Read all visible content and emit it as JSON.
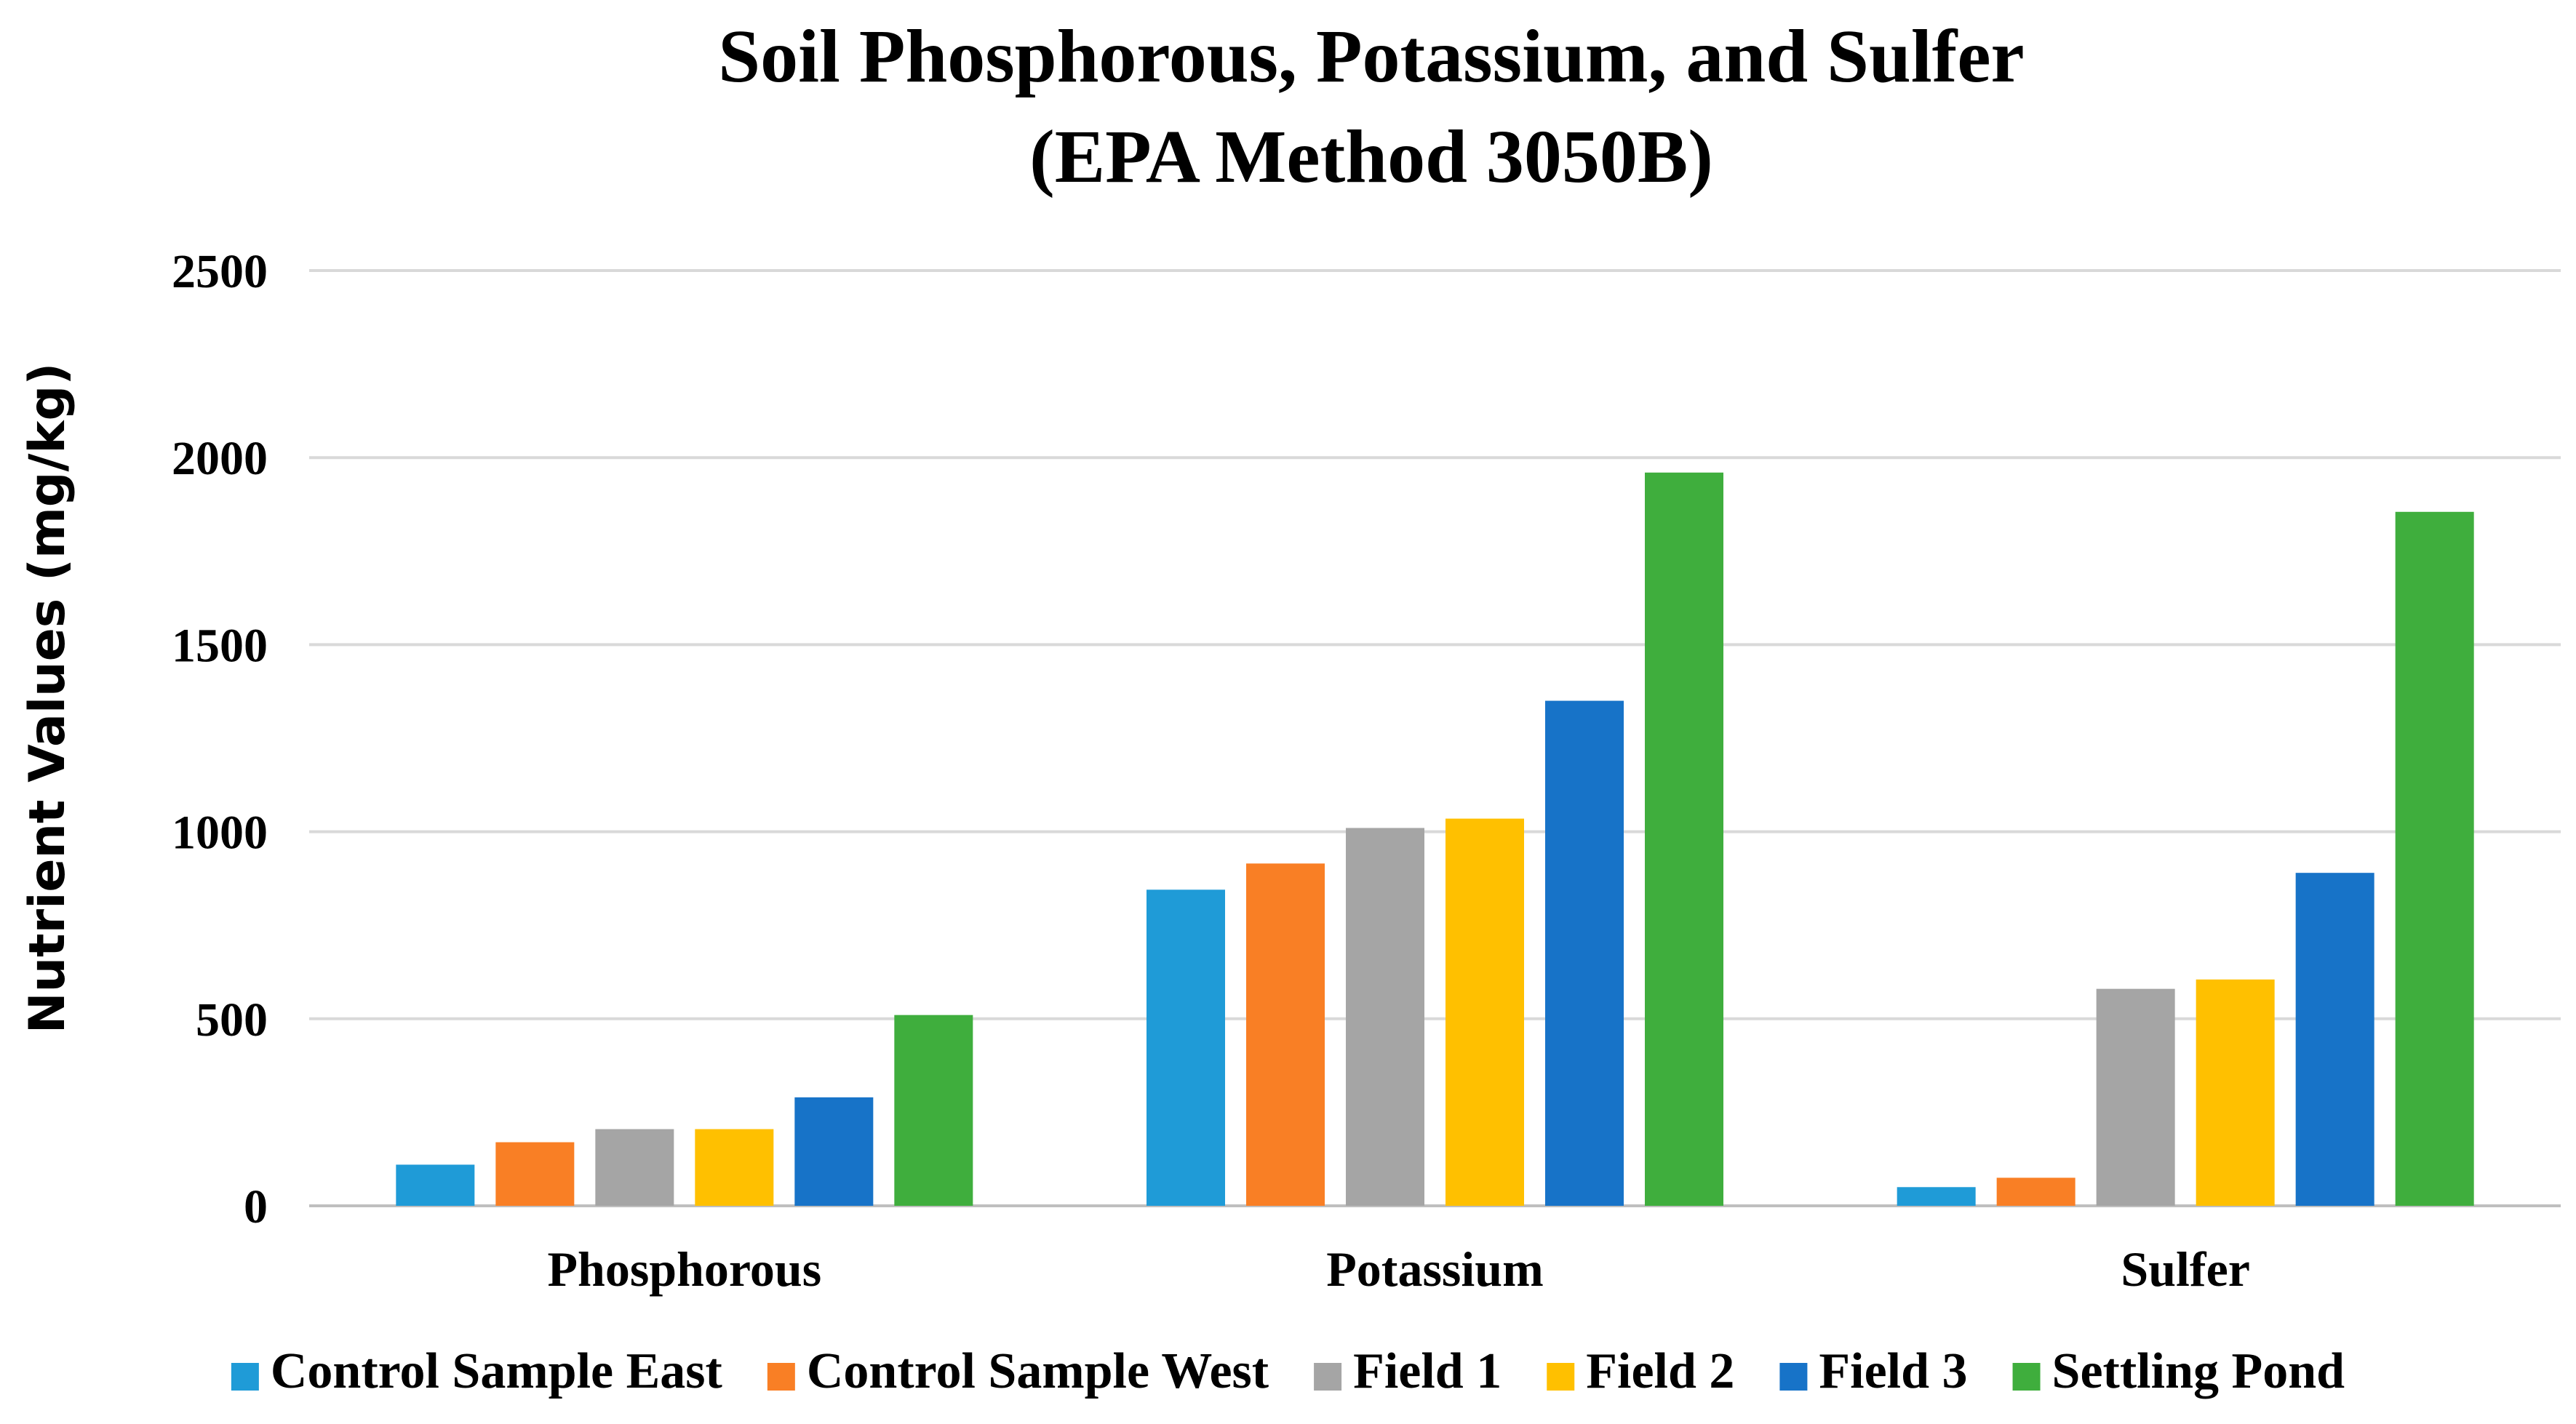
{
  "chart_data": {
    "type": "bar",
    "title_lines": [
      "Soil Phosphorous, Potassium, and Sulfer",
      "(EPA Method 3050B)"
    ],
    "xlabel": "",
    "ylabel": "Nutrient Values (mg/kg)",
    "ylim": [
      0,
      2500
    ],
    "yticks": [
      0,
      500,
      1000,
      1500,
      2000,
      2500
    ],
    "grid": true,
    "legend_position": "bottom",
    "categories": [
      "Phosphorous",
      "Potassium",
      "Sulfer"
    ],
    "series": [
      {
        "name": "Control Sample East",
        "color": "#1f9bd7",
        "values": [
          110,
          845,
          50
        ]
      },
      {
        "name": "Control Sample West",
        "color": "#f97f25",
        "values": [
          170,
          915,
          75
        ]
      },
      {
        "name": "Field 1",
        "color": "#a5a5a5",
        "values": [
          205,
          1010,
          580
        ]
      },
      {
        "name": "Field 2",
        "color": "#ffc000",
        "values": [
          205,
          1035,
          605
        ]
      },
      {
        "name": "Field 3",
        "color": "#1773c8",
        "values": [
          290,
          1350,
          890
        ]
      },
      {
        "name": "Settling Pond",
        "color": "#3fae3d",
        "values": [
          510,
          1960,
          1855
        ]
      }
    ]
  }
}
